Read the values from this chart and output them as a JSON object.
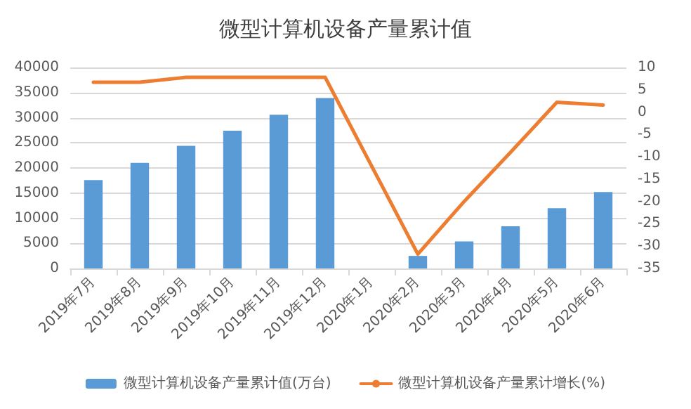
{
  "chart_data": {
    "type": "bar",
    "title": "微型计算机设备产量累计值",
    "categories": [
      "2019年7月",
      "2019年8月",
      "2019年9月",
      "2019年10月",
      "2019年11月",
      "2019年12月",
      "2020年1月",
      "2020年2月",
      "2020年3月",
      "2020年4月",
      "2020年5月",
      "2020年6月"
    ],
    "series": [
      {
        "name": "微型计算机设备产量累计值(万台)",
        "color": "#5b9bd5",
        "values": [
          17600,
          21000,
          24400,
          27400,
          30600,
          33900,
          null,
          2500,
          5400,
          8400,
          12000,
          15200
        ]
      },
      {
        "name": "微型计算机设备产量累计增长(%)",
        "type": "line",
        "axis": "y2",
        "color": "#ed7d31",
        "values": [
          6.7,
          6.7,
          7.8,
          7.8,
          7.8,
          7.8,
          null,
          -31.8,
          -20,
          -9,
          2.2,
          1.6
        ]
      }
    ],
    "ylim": [
      0,
      40000
    ],
    "yticks": [
      0,
      5000,
      10000,
      15000,
      20000,
      25000,
      30000,
      35000,
      40000
    ],
    "y2lim": [
      -35,
      10
    ],
    "y2ticks": [
      -35,
      -30,
      -25,
      -20,
      -15,
      -10,
      -5,
      0,
      5,
      10
    ],
    "grid": "y",
    "legend": "bottom",
    "marker": "none"
  }
}
